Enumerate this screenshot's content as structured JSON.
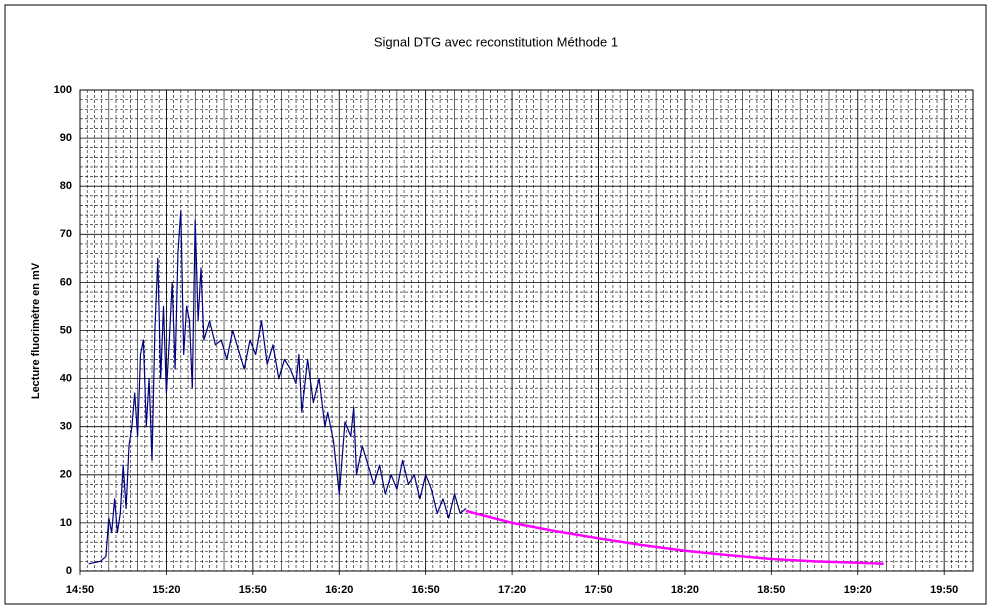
{
  "chart_data": {
    "type": "line",
    "title": "Signal DTG avec reconstitution Méthode 1",
    "y_label": "Lecture fluorimètre en mV",
    "xlim": [
      "14:50",
      "20:00"
    ],
    "xticks": [
      "14:50",
      "15:20",
      "15:50",
      "16:20",
      "16:50",
      "17:20",
      "17:50",
      "18:20",
      "18:50",
      "19:20",
      "19:50"
    ],
    "ylim": [
      0,
      100
    ],
    "yticks": [
      0,
      10,
      20,
      30,
      40,
      50,
      60,
      70,
      80,
      90,
      100
    ],
    "grid": true,
    "series": [
      {
        "color": "#000080",
        "x": [
          "14:53",
          "14:57",
          "14:59",
          "15:00",
          "15:01",
          "15:02",
          "15:03",
          "15:04",
          "15:05",
          "15:06",
          "15:07",
          "15:08",
          "15:09",
          "15:10",
          "15:11",
          "15:12",
          "15:13",
          "15:14",
          "15:15",
          "15:16",
          "15:17",
          "15:18",
          "15:19",
          "15:20",
          "15:21",
          "15:22",
          "15:23",
          "15:24",
          "15:25",
          "15:26",
          "15:27",
          "15:28",
          "15:29",
          "15:30",
          "15:31",
          "15:32",
          "15:33",
          "15:35",
          "15:37",
          "15:39",
          "15:41",
          "15:43",
          "15:45",
          "15:47",
          "15:49",
          "15:51",
          "15:53",
          "15:55",
          "15:57",
          "15:59",
          "16:01",
          "16:03",
          "16:05",
          "16:06",
          "16:07",
          "16:09",
          "16:11",
          "16:13",
          "16:15",
          "16:16",
          "16:18",
          "16:20",
          "16:22",
          "16:24",
          "16:25",
          "16:26",
          "16:28",
          "16:30",
          "16:32",
          "16:34",
          "16:36",
          "16:38",
          "16:40",
          "16:42",
          "16:44",
          "16:46",
          "16:48",
          "16:50",
          "16:52",
          "16:54",
          "16:56",
          "16:58",
          "17:00",
          "17:02",
          "17:04"
        ],
        "values": [
          1.5,
          2,
          3,
          11,
          8,
          15,
          8,
          12,
          22,
          13,
          26,
          30,
          37,
          28,
          45,
          48,
          30,
          40,
          23,
          50,
          65,
          40,
          55,
          37,
          48,
          60,
          42,
          66,
          75,
          45,
          55,
          52,
          38,
          73,
          52,
          63,
          48,
          52,
          47,
          48,
          44,
          50,
          46,
          42,
          48,
          45,
          52,
          43,
          47,
          40,
          44,
          42,
          39,
          45,
          33,
          44,
          35,
          40,
          30,
          33,
          27,
          16,
          31,
          28,
          34,
          20,
          26,
          22,
          18,
          22,
          16,
          20,
          17,
          23,
          18,
          20,
          15,
          20,
          17,
          12,
          15,
          11,
          16,
          12,
          13
        ]
      },
      {
        "color": "#ff00ff",
        "x": [
          "17:04",
          "17:20",
          "17:35",
          "17:50",
          "18:05",
          "18:20",
          "18:35",
          "18:50",
          "19:05",
          "19:20",
          "19:29"
        ],
        "values": [
          12.5,
          10,
          8.3,
          6.8,
          5.4,
          4.2,
          3.3,
          2.5,
          2,
          1.7,
          1.5
        ]
      }
    ]
  }
}
